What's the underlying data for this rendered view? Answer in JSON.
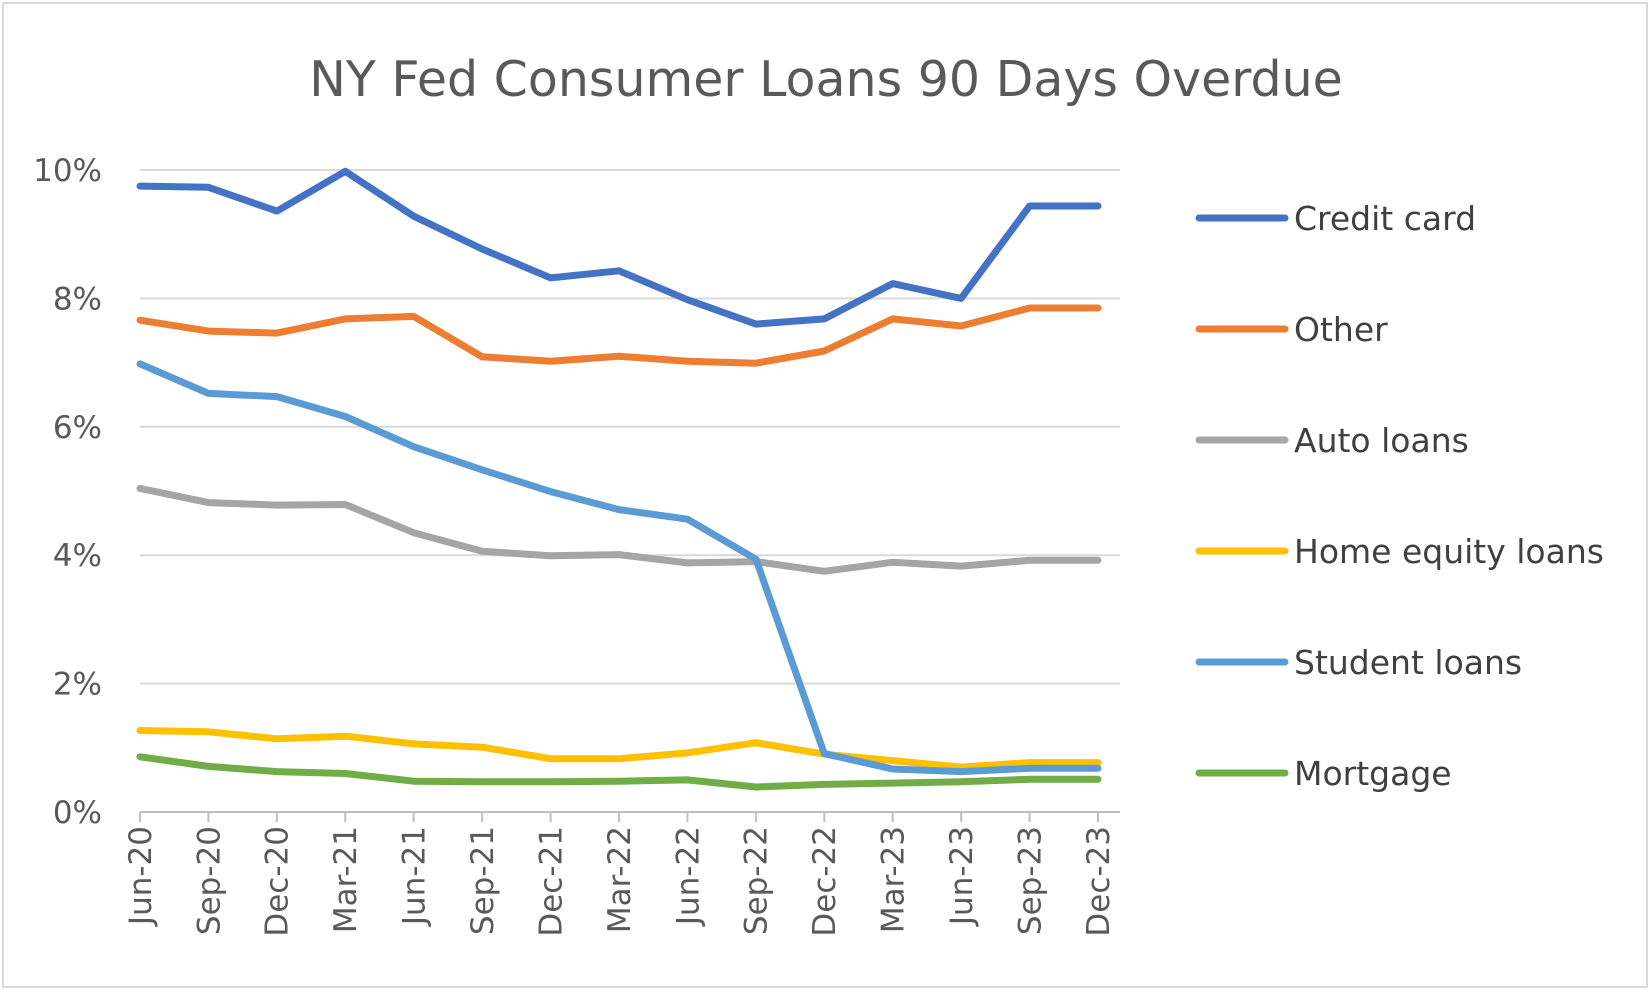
{
  "chart_data": {
    "type": "line",
    "title": "NY Fed Consumer Loans 90 Days Overdue",
    "xlabel": "",
    "ylabel": "",
    "categories": [
      "Jun-20",
      "Sep-20",
      "Dec-20",
      "Mar-21",
      "Jun-21",
      "Sep-21",
      "Dec-21",
      "Mar-22",
      "Jun-22",
      "Sep-22",
      "Dec-22",
      "Mar-23",
      "Jun-23",
      "Sep-23",
      "Dec-23"
    ],
    "ylim": [
      0,
      10
    ],
    "y_ticks": [
      0,
      2,
      4,
      6,
      8,
      10
    ],
    "y_tick_labels": [
      "0%",
      "2%",
      "4%",
      "6%",
      "8%",
      "10%"
    ],
    "grid": true,
    "legend_position": "right",
    "series": [
      {
        "name": "Credit card",
        "color": "#4472c4",
        "values": [
          9.75,
          9.73,
          9.36,
          9.98,
          9.28,
          8.77,
          8.32,
          8.43,
          7.98,
          7.6,
          7.68,
          8.23,
          8.0,
          9.44,
          9.44
        ]
      },
      {
        "name": "Other",
        "color": "#ed7d31",
        "values": [
          7.66,
          7.49,
          7.46,
          7.68,
          7.72,
          7.09,
          7.02,
          7.1,
          7.02,
          6.99,
          7.18,
          7.68,
          7.57,
          7.85,
          7.85
        ]
      },
      {
        "name": "Auto loans",
        "color": "#a5a5a5",
        "values": [
          5.04,
          4.82,
          4.78,
          4.79,
          4.35,
          4.06,
          3.99,
          4.01,
          3.88,
          3.9,
          3.75,
          3.89,
          3.83,
          3.92,
          3.92
        ]
      },
      {
        "name": "Home equity loans",
        "color": "#ffc000",
        "values": [
          1.27,
          1.25,
          1.14,
          1.18,
          1.06,
          1.01,
          0.83,
          0.83,
          0.92,
          1.08,
          0.9,
          0.8,
          0.7,
          0.77,
          0.77
        ]
      },
      {
        "name": "Student loans",
        "color": "#5b9bd5",
        "values": [
          6.98,
          6.52,
          6.47,
          6.16,
          5.69,
          5.33,
          4.99,
          4.71,
          4.56,
          3.94,
          0.91,
          0.67,
          0.63,
          0.68,
          0.68
        ]
      },
      {
        "name": "Mortgage",
        "color": "#70ad47",
        "values": [
          0.86,
          0.71,
          0.63,
          0.6,
          0.48,
          0.47,
          0.47,
          0.48,
          0.5,
          0.39,
          0.43,
          0.45,
          0.47,
          0.51,
          0.51
        ]
      }
    ]
  }
}
